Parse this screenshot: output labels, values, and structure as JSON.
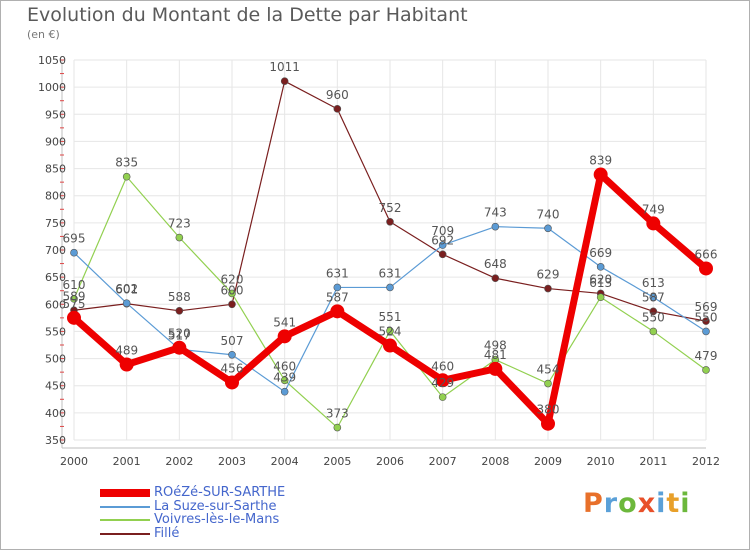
{
  "title": "Evolution du Montant de la Dette par Habitant",
  "unit": "(en €)",
  "logo": {
    "text": "Proxiti",
    "letters": [
      "P",
      "r",
      "o",
      "x",
      "i",
      "t",
      "i"
    ],
    "colors": [
      "#e8702a",
      "#5aa0d8",
      "#6cb83c",
      "#e8502a",
      "#5aa0d8",
      "#e8a02a",
      "#6cb83c"
    ]
  },
  "chart_data": {
    "type": "line",
    "title": "Evolution du Montant de la Dette par Habitant",
    "ylabel": "(en €)",
    "x": [
      "2000",
      "2001",
      "2002",
      "2003",
      "2004",
      "2005",
      "2006",
      "2007",
      "2008",
      "2009",
      "2010",
      "2011",
      "2012"
    ],
    "ylim": [
      350,
      1050
    ],
    "yticks": [
      "350",
      "400",
      "450",
      "500",
      "550",
      "600",
      "650",
      "700",
      "750",
      "800",
      "850",
      "900",
      "950",
      "1000",
      "1050"
    ],
    "grid": true,
    "legend_position": "bottom-left",
    "series": [
      {
        "name": "ROéZé-SUR-SARTHE",
        "color": "#ee0000",
        "width": 7,
        "radius": 7,
        "values": [
          575,
          489,
          520,
          456,
          541,
          587,
          524,
          460,
          481,
          380,
          839,
          749,
          666
        ],
        "labels": [
          "575",
          "489",
          "520",
          "456",
          "541",
          "587",
          "524",
          "460",
          "481",
          "380",
          "839",
          "749",
          "666"
        ]
      },
      {
        "name": "La Suze-sur-Sarthe",
        "color": "#5b9bd5",
        "width": 1.2,
        "radius": 3.5,
        "values": [
          695,
          602,
          517,
          507,
          439,
          631,
          631,
          709,
          743,
          740,
          669,
          613,
          550
        ],
        "labels": [
          "695",
          "602",
          "517",
          "507",
          "439",
          "631",
          "631",
          "709",
          "743",
          "740",
          "669",
          "613",
          "550"
        ]
      },
      {
        "name": "Voivres-lès-le-Mans",
        "color": "#92d050",
        "width": 1.2,
        "radius": 3.5,
        "values": [
          610,
          835,
          723,
          620,
          460,
          373,
          551,
          429,
          498,
          454,
          613,
          550,
          479
        ],
        "labels": [
          "610",
          "835",
          "723",
          "620",
          "460",
          "373",
          "551",
          "429",
          "498",
          "454",
          "613",
          "550",
          "479"
        ]
      },
      {
        "name": "Fillé",
        "color": "#7a1f1f",
        "width": 1.2,
        "radius": 3.5,
        "values": [
          589,
          601,
          588,
          600,
          1011,
          960,
          752,
          692,
          648,
          629,
          620,
          587,
          569
        ],
        "labels": [
          "589",
          "601",
          "588",
          "600",
          "1011",
          "960",
          "752",
          "692",
          "648",
          "629",
          "620",
          "587",
          "569"
        ]
      }
    ]
  }
}
